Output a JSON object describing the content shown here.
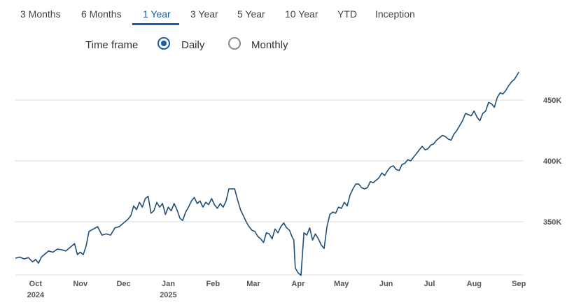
{
  "tabs": [
    {
      "label": "3 Months",
      "active": false
    },
    {
      "label": "6 Months",
      "active": false
    },
    {
      "label": "1 Year",
      "active": true
    },
    {
      "label": "3 Year",
      "active": false
    },
    {
      "label": "5 Year",
      "active": false
    },
    {
      "label": "10 Year",
      "active": false
    },
    {
      "label": "YTD",
      "active": false
    },
    {
      "label": "Inception",
      "active": false
    }
  ],
  "timeframe": {
    "label": "Time frame",
    "options": [
      {
        "label": "Daily",
        "selected": true
      },
      {
        "label": "Monthly",
        "selected": false
      }
    ]
  },
  "colors": {
    "accent": "#1a5ca8",
    "line": "#1f4e79",
    "grid": "#d9d9d9"
  },
  "chart_data": {
    "type": "line",
    "y_axis_position": "right",
    "grid": true,
    "ylim": [
      300000,
      475000
    ],
    "y_ticks": [
      {
        "value": 350000,
        "label": "350K"
      },
      {
        "value": 400000,
        "label": "400K"
      },
      {
        "value": 450000,
        "label": "450K"
      }
    ],
    "x_ticks": [
      {
        "label": "Oct",
        "sub": "2024",
        "day": 14
      },
      {
        "label": "Nov",
        "sub": "",
        "day": 45
      },
      {
        "label": "Dec",
        "sub": "",
        "day": 75
      },
      {
        "label": "Jan",
        "sub": "2025",
        "day": 106
      },
      {
        "label": "Feb",
        "sub": "",
        "day": 137
      },
      {
        "label": "Mar",
        "sub": "",
        "day": 165
      },
      {
        "label": "Apr",
        "sub": "",
        "day": 196
      },
      {
        "label": "May",
        "sub": "",
        "day": 226
      },
      {
        "label": "Jun",
        "sub": "",
        "day": 257
      },
      {
        "label": "Jul",
        "sub": "",
        "day": 287
      },
      {
        "label": "Aug",
        "sub": "",
        "day": 318
      },
      {
        "label": "Sep",
        "sub": "",
        "day": 349
      }
    ],
    "x_range": [
      0,
      362
    ],
    "series": [
      {
        "points": [
          [
            0,
            320000
          ],
          [
            3,
            321000
          ],
          [
            6,
            319500
          ],
          [
            9,
            320500
          ],
          [
            12,
            317000
          ],
          [
            14,
            319000
          ],
          [
            16,
            316000
          ],
          [
            18,
            321000
          ],
          [
            20,
            323000
          ],
          [
            23,
            326000
          ],
          [
            26,
            325000
          ],
          [
            29,
            327500
          ],
          [
            32,
            327000
          ],
          [
            35,
            326000
          ],
          [
            38,
            329000
          ],
          [
            41,
            332000
          ],
          [
            43,
            323000
          ],
          [
            45,
            325000
          ],
          [
            47,
            323000
          ],
          [
            49,
            330000
          ],
          [
            51,
            342000
          ],
          [
            54,
            344000
          ],
          [
            57,
            346000
          ],
          [
            60,
            339000
          ],
          [
            63,
            340000
          ],
          [
            66,
            339000
          ],
          [
            69,
            345000
          ],
          [
            72,
            346000
          ],
          [
            75,
            349000
          ],
          [
            78,
            352000
          ],
          [
            80,
            355000
          ],
          [
            82,
            363000
          ],
          [
            84,
            360000
          ],
          [
            86,
            366000
          ],
          [
            88,
            362000
          ],
          [
            90,
            369000
          ],
          [
            92,
            371000
          ],
          [
            94,
            357000
          ],
          [
            96,
            359000
          ],
          [
            98,
            366000
          ],
          [
            100,
            362000
          ],
          [
            102,
            365000
          ],
          [
            104,
            356000
          ],
          [
            106,
            362000
          ],
          [
            108,
            359000
          ],
          [
            110,
            365000
          ],
          [
            112,
            360000
          ],
          [
            114,
            353000
          ],
          [
            116,
            351000
          ],
          [
            118,
            358000
          ],
          [
            120,
            362000
          ],
          [
            122,
            367000
          ],
          [
            124,
            370000
          ],
          [
            126,
            365000
          ],
          [
            128,
            367000
          ],
          [
            130,
            362000
          ],
          [
            132,
            366000
          ],
          [
            134,
            364000
          ],
          [
            136,
            369000
          ],
          [
            138,
            364000
          ],
          [
            140,
            361000
          ],
          [
            142,
            365000
          ],
          [
            144,
            362000
          ],
          [
            146,
            367000
          ],
          [
            148,
            377000
          ],
          [
            150,
            377000
          ],
          [
            152,
            377000
          ],
          [
            154,
            368000
          ],
          [
            156,
            360000
          ],
          [
            158,
            355000
          ],
          [
            160,
            350000
          ],
          [
            162,
            346000
          ],
          [
            164,
            343000
          ],
          [
            166,
            342000
          ],
          [
            168,
            338000
          ],
          [
            170,
            336000
          ],
          [
            172,
            333000
          ],
          [
            174,
            341000
          ],
          [
            176,
            340000
          ],
          [
            178,
            336000
          ],
          [
            180,
            344000
          ],
          [
            182,
            341000
          ],
          [
            184,
            346000
          ],
          [
            186,
            349000
          ],
          [
            188,
            345000
          ],
          [
            190,
            343000
          ],
          [
            192,
            337000
          ],
          [
            193,
            335000
          ],
          [
            194,
            312000
          ],
          [
            196,
            308000
          ],
          [
            198,
            306000
          ],
          [
            200,
            341000
          ],
          [
            202,
            339000
          ],
          [
            204,
            345000
          ],
          [
            206,
            335000
          ],
          [
            208,
            340000
          ],
          [
            210,
            336000
          ],
          [
            212,
            331000
          ],
          [
            214,
            328000
          ],
          [
            216,
            346000
          ],
          [
            218,
            356000
          ],
          [
            220,
            358000
          ],
          [
            222,
            357000
          ],
          [
            224,
            362000
          ],
          [
            226,
            361000
          ],
          [
            228,
            366000
          ],
          [
            230,
            363000
          ],
          [
            232,
            372000
          ],
          [
            234,
            377000
          ],
          [
            236,
            381000
          ],
          [
            238,
            381000
          ],
          [
            240,
            378000
          ],
          [
            242,
            377000
          ],
          [
            244,
            378000
          ],
          [
            246,
            383000
          ],
          [
            248,
            382000
          ],
          [
            250,
            384000
          ],
          [
            252,
            386000
          ],
          [
            254,
            390000
          ],
          [
            256,
            388000
          ],
          [
            258,
            392000
          ],
          [
            260,
            395000
          ],
          [
            262,
            396000
          ],
          [
            264,
            393000
          ],
          [
            266,
            392000
          ],
          [
            268,
            397000
          ],
          [
            270,
            398000
          ],
          [
            272,
            401000
          ],
          [
            274,
            400000
          ],
          [
            276,
            403000
          ],
          [
            278,
            406000
          ],
          [
            280,
            409000
          ],
          [
            282,
            412000
          ],
          [
            284,
            409000
          ],
          [
            286,
            410000
          ],
          [
            288,
            413000
          ],
          [
            290,
            414000
          ],
          [
            292,
            417000
          ],
          [
            294,
            419000
          ],
          [
            296,
            421000
          ],
          [
            298,
            420000
          ],
          [
            300,
            418000
          ],
          [
            302,
            417000
          ],
          [
            304,
            422000
          ],
          [
            306,
            425000
          ],
          [
            308,
            429000
          ],
          [
            310,
            433000
          ],
          [
            312,
            439000
          ],
          [
            314,
            438000
          ],
          [
            316,
            437000
          ],
          [
            318,
            441000
          ],
          [
            320,
            436000
          ],
          [
            322,
            433000
          ],
          [
            324,
            439000
          ],
          [
            326,
            441000
          ],
          [
            328,
            448000
          ],
          [
            330,
            447000
          ],
          [
            332,
            444000
          ],
          [
            334,
            452000
          ],
          [
            336,
            456000
          ],
          [
            338,
            455000
          ],
          [
            340,
            458000
          ],
          [
            342,
            462000
          ],
          [
            344,
            465000
          ],
          [
            346,
            467000
          ],
          [
            348,
            471000
          ],
          [
            349,
            473000
          ]
        ]
      }
    ]
  }
}
